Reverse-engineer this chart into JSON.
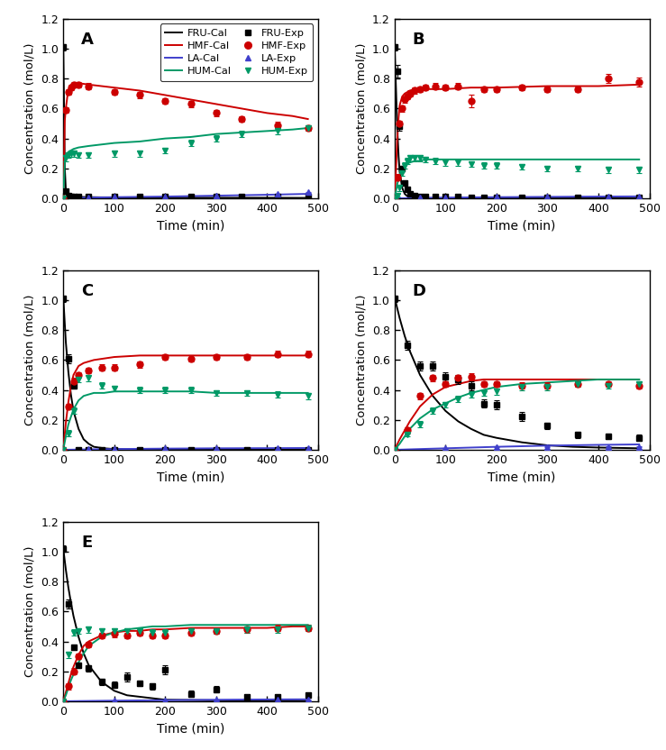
{
  "xlim": [
    0,
    500
  ],
  "ylim": [
    0,
    1.2
  ],
  "yticks": [
    0.0,
    0.2,
    0.4,
    0.6,
    0.8,
    1.0,
    1.2
  ],
  "xticks": [
    0,
    100,
    200,
    300,
    400,
    500
  ],
  "xlabel": "Time (min)",
  "ylabel": "Concentration (mol/L)",
  "colors": {
    "FRU": "#000000",
    "HMF": "#cc0000",
    "LA": "#4040cc",
    "HUM": "#009966"
  },
  "A_FRU_cal_t": [
    0,
    3,
    5,
    8,
    10,
    15,
    20,
    30,
    50,
    100,
    200,
    300,
    400,
    480
  ],
  "A_FRU_cal_y": [
    1.02,
    0.2,
    0.06,
    0.03,
    0.02,
    0.015,
    0.012,
    0.01,
    0.008,
    0.006,
    0.005,
    0.004,
    0.004,
    0.003
  ],
  "A_HMF_cal_t": [
    0,
    3,
    5,
    8,
    10,
    15,
    20,
    30,
    50,
    75,
    100,
    150,
    200,
    250,
    300,
    350,
    400,
    450,
    480
  ],
  "A_HMF_cal_y": [
    0.0,
    0.52,
    0.6,
    0.68,
    0.72,
    0.76,
    0.77,
    0.77,
    0.76,
    0.75,
    0.74,
    0.72,
    0.69,
    0.66,
    0.63,
    0.6,
    0.57,
    0.55,
    0.53
  ],
  "A_LA_cal_t": [
    0,
    50,
    100,
    200,
    300,
    400,
    480
  ],
  "A_LA_cal_y": [
    0.0,
    0.005,
    0.008,
    0.012,
    0.018,
    0.024,
    0.03
  ],
  "A_HUM_cal_t": [
    0,
    3,
    5,
    8,
    10,
    15,
    20,
    30,
    50,
    75,
    100,
    150,
    200,
    250,
    300,
    350,
    400,
    450,
    480
  ],
  "A_HUM_cal_y": [
    0.0,
    0.25,
    0.29,
    0.3,
    0.31,
    0.32,
    0.33,
    0.34,
    0.35,
    0.36,
    0.37,
    0.38,
    0.4,
    0.41,
    0.43,
    0.44,
    0.45,
    0.46,
    0.47
  ],
  "A_FRU_exp_t": [
    0,
    5,
    10,
    15,
    20,
    30,
    50,
    100,
    150,
    200,
    250,
    300,
    350,
    420,
    480
  ],
  "A_FRU_exp_y": [
    1.01,
    0.05,
    0.02,
    0.01,
    0.01,
    0.01,
    0.01,
    0.01,
    0.01,
    0.01,
    0.01,
    0.01,
    0.01,
    0.01,
    0.01
  ],
  "A_FRU_exp_e": [
    0.02,
    0.01,
    0.005,
    0.003,
    0.003,
    0.003,
    0.003,
    0.003,
    0.003,
    0.003,
    0.003,
    0.003,
    0.003,
    0.003,
    0.003
  ],
  "A_HMF_exp_t": [
    0,
    5,
    10,
    15,
    20,
    30,
    50,
    100,
    150,
    200,
    250,
    300,
    350,
    420,
    480
  ],
  "A_HMF_exp_y": [
    0.0,
    0.59,
    0.71,
    0.74,
    0.76,
    0.76,
    0.75,
    0.71,
    0.69,
    0.65,
    0.63,
    0.57,
    0.53,
    0.49,
    0.47
  ],
  "A_HMF_exp_e": [
    0.01,
    0.02,
    0.02,
    0.02,
    0.02,
    0.02,
    0.02,
    0.02,
    0.02,
    0.02,
    0.02,
    0.02,
    0.02,
    0.02,
    0.02
  ],
  "A_LA_exp_t": [
    0,
    50,
    100,
    200,
    300,
    420,
    480
  ],
  "A_LA_exp_y": [
    0.0,
    0.005,
    0.01,
    0.015,
    0.02,
    0.03,
    0.04
  ],
  "A_LA_exp_e": [
    0.0,
    0.002,
    0.002,
    0.002,
    0.002,
    0.003,
    0.003
  ],
  "A_HUM_exp_t": [
    0,
    5,
    10,
    15,
    20,
    30,
    50,
    100,
    150,
    200,
    250,
    300,
    350,
    420,
    480
  ],
  "A_HUM_exp_y": [
    0.0,
    0.27,
    0.29,
    0.3,
    0.3,
    0.29,
    0.29,
    0.3,
    0.3,
    0.32,
    0.37,
    0.4,
    0.43,
    0.45,
    0.47
  ],
  "A_HUM_exp_e": [
    0.01,
    0.02,
    0.02,
    0.02,
    0.02,
    0.02,
    0.02,
    0.02,
    0.02,
    0.02,
    0.02,
    0.02,
    0.02,
    0.02,
    0.02
  ],
  "B_FRU_cal_t": [
    0,
    3,
    5,
    8,
    10,
    15,
    20,
    25,
    30,
    40,
    50,
    60,
    75,
    100,
    150,
    200,
    300,
    400,
    480
  ],
  "B_FRU_cal_y": [
    1.02,
    0.72,
    0.5,
    0.28,
    0.18,
    0.07,
    0.03,
    0.015,
    0.008,
    0.004,
    0.002,
    0.002,
    0.001,
    0.001,
    0.001,
    0.001,
    0.001,
    0.001,
    0.001
  ],
  "B_HMF_cal_t": [
    0,
    3,
    5,
    8,
    10,
    15,
    20,
    25,
    30,
    40,
    50,
    60,
    75,
    100,
    150,
    200,
    300,
    400,
    480
  ],
  "B_HMF_cal_y": [
    0.0,
    0.2,
    0.38,
    0.54,
    0.62,
    0.68,
    0.7,
    0.71,
    0.72,
    0.73,
    0.73,
    0.73,
    0.73,
    0.73,
    0.74,
    0.74,
    0.75,
    0.75,
    0.76
  ],
  "B_LA_cal_t": [
    0,
    50,
    100,
    200,
    300,
    400,
    480
  ],
  "B_LA_cal_y": [
    0.0,
    0.003,
    0.005,
    0.008,
    0.01,
    0.012,
    0.013
  ],
  "B_HUM_cal_t": [
    0,
    3,
    5,
    8,
    10,
    15,
    20,
    25,
    30,
    40,
    50,
    60,
    75,
    100,
    150,
    200,
    300,
    400,
    480
  ],
  "B_HUM_cal_y": [
    0.0,
    0.05,
    0.09,
    0.13,
    0.16,
    0.19,
    0.21,
    0.23,
    0.24,
    0.25,
    0.25,
    0.26,
    0.26,
    0.26,
    0.26,
    0.26,
    0.26,
    0.26,
    0.26
  ],
  "B_FRU_exp_t": [
    0,
    5,
    10,
    15,
    20,
    25,
    30,
    40,
    50,
    60,
    80,
    100,
    125,
    150,
    175,
    200,
    250,
    300,
    360,
    420,
    480
  ],
  "B_FRU_exp_y": [
    1.01,
    0.85,
    0.48,
    0.2,
    0.1,
    0.06,
    0.03,
    0.02,
    0.01,
    0.01,
    0.01,
    0.01,
    0.01,
    0.005,
    0.005,
    0.005,
    0.005,
    0.005,
    0.005,
    0.005,
    0.005
  ],
  "B_FRU_exp_e": [
    0.02,
    0.04,
    0.03,
    0.02,
    0.01,
    0.01,
    0.005,
    0.005,
    0.005,
    0.005,
    0.005,
    0.005,
    0.005,
    0.005,
    0.005,
    0.005,
    0.005,
    0.005,
    0.005,
    0.005,
    0.005
  ],
  "B_HMF_exp_t": [
    0,
    5,
    10,
    15,
    20,
    25,
    30,
    40,
    50,
    60,
    80,
    100,
    125,
    150,
    175,
    200,
    250,
    300,
    360,
    420,
    480
  ],
  "B_HMF_exp_y": [
    0.0,
    0.14,
    0.5,
    0.6,
    0.66,
    0.68,
    0.7,
    0.72,
    0.73,
    0.74,
    0.75,
    0.74,
    0.75,
    0.65,
    0.73,
    0.73,
    0.74,
    0.73,
    0.73,
    0.8,
    0.78
  ],
  "B_HMF_exp_e": [
    0.01,
    0.02,
    0.02,
    0.02,
    0.02,
    0.02,
    0.02,
    0.02,
    0.02,
    0.02,
    0.02,
    0.02,
    0.02,
    0.04,
    0.02,
    0.02,
    0.02,
    0.02,
    0.02,
    0.03,
    0.03
  ],
  "B_LA_exp_t": [
    0,
    50,
    100,
    200,
    300,
    420,
    480
  ],
  "B_LA_exp_y": [
    0.0,
    0.005,
    0.007,
    0.01,
    0.01,
    0.01,
    0.01
  ],
  "B_LA_exp_e": [
    0.0,
    0.002,
    0.002,
    0.002,
    0.002,
    0.002,
    0.002
  ],
  "B_HUM_exp_t": [
    0,
    5,
    10,
    15,
    20,
    25,
    30,
    40,
    50,
    60,
    80,
    100,
    125,
    150,
    175,
    200,
    250,
    300,
    360,
    420,
    480
  ],
  "B_HUM_exp_y": [
    0.0,
    0.02,
    0.07,
    0.17,
    0.22,
    0.25,
    0.27,
    0.27,
    0.27,
    0.26,
    0.25,
    0.24,
    0.24,
    0.23,
    0.22,
    0.22,
    0.21,
    0.2,
    0.2,
    0.19,
    0.19
  ],
  "B_HUM_exp_e": [
    0.005,
    0.01,
    0.02,
    0.02,
    0.02,
    0.02,
    0.02,
    0.02,
    0.02,
    0.02,
    0.02,
    0.02,
    0.02,
    0.02,
    0.02,
    0.02,
    0.02,
    0.02,
    0.02,
    0.02,
    0.02
  ],
  "C_FRU_cal_t": [
    0,
    5,
    10,
    15,
    20,
    30,
    40,
    50,
    60,
    80,
    100,
    150,
    200,
    300,
    400,
    480
  ],
  "C_FRU_cal_y": [
    1.02,
    0.72,
    0.52,
    0.37,
    0.26,
    0.14,
    0.07,
    0.04,
    0.02,
    0.01,
    0.005,
    0.002,
    0.001,
    0.001,
    0.001,
    0.001
  ],
  "C_HMF_cal_t": [
    0,
    5,
    10,
    15,
    20,
    30,
    40,
    50,
    60,
    80,
    100,
    150,
    200,
    250,
    300,
    350,
    400,
    480
  ],
  "C_HMF_cal_y": [
    0.0,
    0.18,
    0.32,
    0.42,
    0.5,
    0.56,
    0.58,
    0.59,
    0.6,
    0.61,
    0.62,
    0.63,
    0.63,
    0.63,
    0.63,
    0.63,
    0.63,
    0.63
  ],
  "C_LA_cal_t": [
    0,
    50,
    100,
    200,
    300,
    400,
    480
  ],
  "C_LA_cal_y": [
    0.0,
    0.003,
    0.005,
    0.008,
    0.01,
    0.011,
    0.012
  ],
  "C_HUM_cal_t": [
    0,
    5,
    10,
    15,
    20,
    30,
    40,
    50,
    60,
    80,
    100,
    150,
    200,
    250,
    300,
    350,
    400,
    480
  ],
  "C_HUM_cal_y": [
    0.0,
    0.09,
    0.17,
    0.22,
    0.27,
    0.33,
    0.36,
    0.37,
    0.38,
    0.38,
    0.39,
    0.39,
    0.39,
    0.39,
    0.38,
    0.38,
    0.38,
    0.38
  ],
  "C_FRU_exp_t": [
    0,
    10,
    20,
    30,
    50,
    75,
    100,
    150,
    200,
    250,
    300,
    360,
    420,
    480
  ],
  "C_FRU_exp_y": [
    1.01,
    0.61,
    0.43,
    0.0,
    0.0,
    0.0,
    0.0,
    0.0,
    0.0,
    0.0,
    0.0,
    0.0,
    0.0,
    0.0
  ],
  "C_FRU_exp_e": [
    0.02,
    0.03,
    0.02,
    0.003,
    0.003,
    0.003,
    0.003,
    0.003,
    0.003,
    0.003,
    0.003,
    0.003,
    0.003,
    0.003
  ],
  "C_HMF_exp_t": [
    0,
    10,
    20,
    30,
    50,
    75,
    100,
    150,
    200,
    250,
    300,
    360,
    420,
    480
  ],
  "C_HMF_exp_y": [
    0.0,
    0.29,
    0.46,
    0.5,
    0.53,
    0.55,
    0.55,
    0.57,
    0.62,
    0.61,
    0.62,
    0.62,
    0.64,
    0.64
  ],
  "C_HMF_exp_e": [
    0.01,
    0.02,
    0.02,
    0.02,
    0.02,
    0.02,
    0.02,
    0.02,
    0.02,
    0.02,
    0.02,
    0.02,
    0.02,
    0.02
  ],
  "C_LA_exp_t": [
    0,
    50,
    100,
    200,
    300,
    420,
    480
  ],
  "C_LA_exp_y": [
    0.0,
    0.005,
    0.007,
    0.01,
    0.01,
    0.01,
    0.01
  ],
  "C_LA_exp_e": [
    0.0,
    0.002,
    0.002,
    0.002,
    0.002,
    0.002,
    0.002
  ],
  "C_HUM_exp_t": [
    0,
    10,
    20,
    30,
    50,
    75,
    100,
    150,
    200,
    250,
    300,
    360,
    420,
    480
  ],
  "C_HUM_exp_y": [
    0.0,
    0.11,
    0.26,
    0.47,
    0.48,
    0.43,
    0.41,
    0.4,
    0.4,
    0.4,
    0.38,
    0.38,
    0.37,
    0.36
  ],
  "C_HUM_exp_e": [
    0.005,
    0.02,
    0.02,
    0.02,
    0.02,
    0.02,
    0.02,
    0.02,
    0.02,
    0.02,
    0.02,
    0.02,
    0.02,
    0.02
  ],
  "D_FRU_cal_t": [
    0,
    10,
    20,
    30,
    50,
    75,
    100,
    125,
    150,
    175,
    200,
    250,
    300,
    350,
    400,
    450,
    480
  ],
  "D_FRU_cal_y": [
    1.02,
    0.88,
    0.76,
    0.66,
    0.5,
    0.36,
    0.26,
    0.19,
    0.14,
    0.1,
    0.08,
    0.05,
    0.03,
    0.02,
    0.015,
    0.012,
    0.01
  ],
  "D_HMF_cal_t": [
    0,
    10,
    20,
    30,
    50,
    75,
    100,
    125,
    150,
    175,
    200,
    250,
    300,
    350,
    400,
    450,
    480
  ],
  "D_HMF_cal_y": [
    0.0,
    0.07,
    0.13,
    0.19,
    0.29,
    0.37,
    0.42,
    0.44,
    0.46,
    0.47,
    0.47,
    0.47,
    0.47,
    0.47,
    0.47,
    0.47,
    0.47
  ],
  "D_LA_cal_t": [
    0,
    50,
    100,
    200,
    300,
    400,
    480
  ],
  "D_LA_cal_y": [
    0.0,
    0.005,
    0.01,
    0.02,
    0.028,
    0.033,
    0.036
  ],
  "D_HUM_cal_t": [
    0,
    10,
    20,
    30,
    50,
    75,
    100,
    125,
    150,
    175,
    200,
    250,
    300,
    350,
    400,
    450,
    480
  ],
  "D_HUM_cal_y": [
    0.0,
    0.04,
    0.09,
    0.14,
    0.21,
    0.27,
    0.31,
    0.35,
    0.38,
    0.4,
    0.42,
    0.44,
    0.45,
    0.46,
    0.47,
    0.47,
    0.47
  ],
  "D_FRU_exp_t": [
    0,
    25,
    50,
    75,
    100,
    125,
    150,
    175,
    200,
    250,
    300,
    360,
    420,
    480
  ],
  "D_FRU_exp_y": [
    1.01,
    0.7,
    0.56,
    0.56,
    0.49,
    0.47,
    0.43,
    0.31,
    0.3,
    0.22,
    0.16,
    0.1,
    0.09,
    0.08
  ],
  "D_FRU_exp_e": [
    0.02,
    0.03,
    0.03,
    0.03,
    0.03,
    0.03,
    0.03,
    0.03,
    0.03,
    0.03,
    0.02,
    0.02,
    0.02,
    0.02
  ],
  "D_HMF_exp_t": [
    0,
    25,
    50,
    75,
    100,
    125,
    150,
    175,
    200,
    250,
    300,
    360,
    420,
    480
  ],
  "D_HMF_exp_y": [
    0.0,
    0.13,
    0.36,
    0.48,
    0.44,
    0.48,
    0.49,
    0.44,
    0.44,
    0.43,
    0.43,
    0.44,
    0.44,
    0.43
  ],
  "D_HMF_exp_e": [
    0.01,
    0.02,
    0.02,
    0.02,
    0.02,
    0.02,
    0.02,
    0.02,
    0.02,
    0.02,
    0.02,
    0.02,
    0.02,
    0.02
  ],
  "D_LA_exp_t": [
    0,
    100,
    200,
    300,
    420,
    480
  ],
  "D_LA_exp_y": [
    0.0,
    0.01,
    0.02,
    0.02,
    0.02,
    0.02
  ],
  "D_LA_exp_e": [
    0.0,
    0.002,
    0.002,
    0.002,
    0.002,
    0.002
  ],
  "D_HUM_exp_t": [
    0,
    25,
    50,
    75,
    100,
    125,
    150,
    175,
    200,
    250,
    300,
    360,
    420,
    480
  ],
  "D_HUM_exp_y": [
    0.0,
    0.1,
    0.17,
    0.26,
    0.3,
    0.34,
    0.37,
    0.38,
    0.39,
    0.42,
    0.42,
    0.44,
    0.43,
    0.44
  ],
  "D_HUM_exp_e": [
    0.005,
    0.01,
    0.02,
    0.02,
    0.02,
    0.02,
    0.02,
    0.02,
    0.02,
    0.02,
    0.02,
    0.02,
    0.02,
    0.02
  ],
  "E_FRU_cal_t": [
    0,
    5,
    10,
    15,
    20,
    30,
    40,
    50,
    75,
    100,
    125,
    150,
    175,
    200,
    250,
    300,
    350,
    400,
    450,
    480
  ],
  "E_FRU_cal_y": [
    1.02,
    0.88,
    0.76,
    0.66,
    0.57,
    0.43,
    0.32,
    0.24,
    0.13,
    0.07,
    0.04,
    0.03,
    0.02,
    0.01,
    0.008,
    0.006,
    0.005,
    0.004,
    0.004,
    0.003
  ],
  "E_HMF_cal_t": [
    0,
    5,
    10,
    15,
    20,
    30,
    40,
    50,
    75,
    100,
    125,
    150,
    175,
    200,
    250,
    300,
    350,
    400,
    450,
    480
  ],
  "E_HMF_cal_y": [
    0.0,
    0.06,
    0.12,
    0.18,
    0.23,
    0.31,
    0.37,
    0.4,
    0.44,
    0.46,
    0.47,
    0.47,
    0.48,
    0.48,
    0.49,
    0.49,
    0.49,
    0.49,
    0.5,
    0.5
  ],
  "E_LA_cal_t": [
    0,
    50,
    100,
    200,
    300,
    400,
    480
  ],
  "E_LA_cal_y": [
    0.0,
    0.002,
    0.004,
    0.007,
    0.01,
    0.012,
    0.013
  ],
  "E_HUM_cal_t": [
    0,
    5,
    10,
    15,
    20,
    30,
    40,
    50,
    75,
    100,
    125,
    150,
    175,
    200,
    250,
    300,
    350,
    400,
    450,
    480
  ],
  "E_HUM_cal_y": [
    0.0,
    0.04,
    0.09,
    0.14,
    0.18,
    0.26,
    0.32,
    0.37,
    0.43,
    0.46,
    0.48,
    0.49,
    0.5,
    0.5,
    0.51,
    0.51,
    0.51,
    0.51,
    0.51,
    0.51
  ],
  "E_FRU_exp_t": [
    0,
    10,
    20,
    30,
    50,
    75,
    100,
    125,
    150,
    175,
    200,
    250,
    300,
    360,
    420,
    480
  ],
  "E_FRU_exp_y": [
    1.02,
    0.65,
    0.36,
    0.24,
    0.22,
    0.13,
    0.11,
    0.16,
    0.12,
    0.1,
    0.21,
    0.05,
    0.08,
    0.03,
    0.03,
    0.04
  ],
  "E_FRU_exp_e": [
    0.02,
    0.03,
    0.02,
    0.02,
    0.02,
    0.02,
    0.02,
    0.03,
    0.02,
    0.02,
    0.03,
    0.02,
    0.02,
    0.01,
    0.01,
    0.01
  ],
  "E_HMF_exp_t": [
    0,
    10,
    20,
    30,
    50,
    75,
    100,
    125,
    150,
    175,
    200,
    250,
    300,
    360,
    420,
    480
  ],
  "E_HMF_exp_y": [
    0.0,
    0.1,
    0.2,
    0.3,
    0.38,
    0.44,
    0.45,
    0.44,
    0.46,
    0.44,
    0.44,
    0.46,
    0.47,
    0.48,
    0.49,
    0.49
  ],
  "E_HMF_exp_e": [
    0.01,
    0.02,
    0.02,
    0.02,
    0.02,
    0.02,
    0.02,
    0.02,
    0.02,
    0.02,
    0.02,
    0.02,
    0.02,
    0.02,
    0.02,
    0.02
  ],
  "E_LA_exp_t": [
    0,
    100,
    200,
    300,
    420,
    480
  ],
  "E_LA_exp_y": [
    0.0,
    0.005,
    0.007,
    0.01,
    0.01,
    0.01
  ],
  "E_LA_exp_e": [
    0.0,
    0.002,
    0.002,
    0.002,
    0.002,
    0.002
  ],
  "E_HUM_exp_t": [
    0,
    10,
    20,
    30,
    50,
    75,
    100,
    125,
    150,
    175,
    200,
    250,
    300,
    360,
    420,
    480
  ],
  "E_HUM_exp_y": [
    0.0,
    0.31,
    0.46,
    0.47,
    0.48,
    0.47,
    0.47,
    0.47,
    0.47,
    0.46,
    0.46,
    0.47,
    0.47,
    0.48,
    0.48,
    0.49
  ],
  "E_HUM_exp_e": [
    0.005,
    0.02,
    0.02,
    0.02,
    0.02,
    0.02,
    0.02,
    0.02,
    0.02,
    0.02,
    0.02,
    0.02,
    0.02,
    0.02,
    0.02,
    0.02
  ]
}
